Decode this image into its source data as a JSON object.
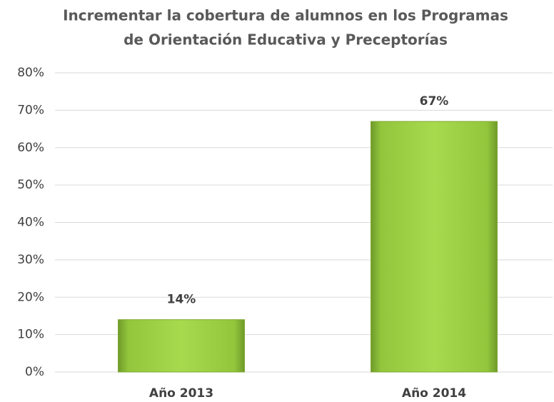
{
  "chart_data": {
    "type": "bar",
    "title": [
      "Incrementar la cobertura de alumnos en los Programas",
      "de Orientación Educativa y Preceptorías"
    ],
    "categories": [
      "Año 2013",
      "Año 2014"
    ],
    "values": [
      14,
      67
    ],
    "value_labels": [
      "14%",
      "67%"
    ],
    "color": "#9acd3f",
    "ylim": [
      0,
      80
    ],
    "yticks": [
      {
        "value": 0,
        "label": "0%"
      },
      {
        "value": 10,
        "label": "10%"
      },
      {
        "value": 20,
        "label": "20%"
      },
      {
        "value": 30,
        "label": "30%"
      },
      {
        "value": 40,
        "label": "40%"
      },
      {
        "value": 50,
        "label": "50%"
      },
      {
        "value": 60,
        "label": "60%"
      },
      {
        "value": 70,
        "label": "70%"
      },
      {
        "value": 80,
        "label": "80%"
      }
    ],
    "grid": true
  }
}
